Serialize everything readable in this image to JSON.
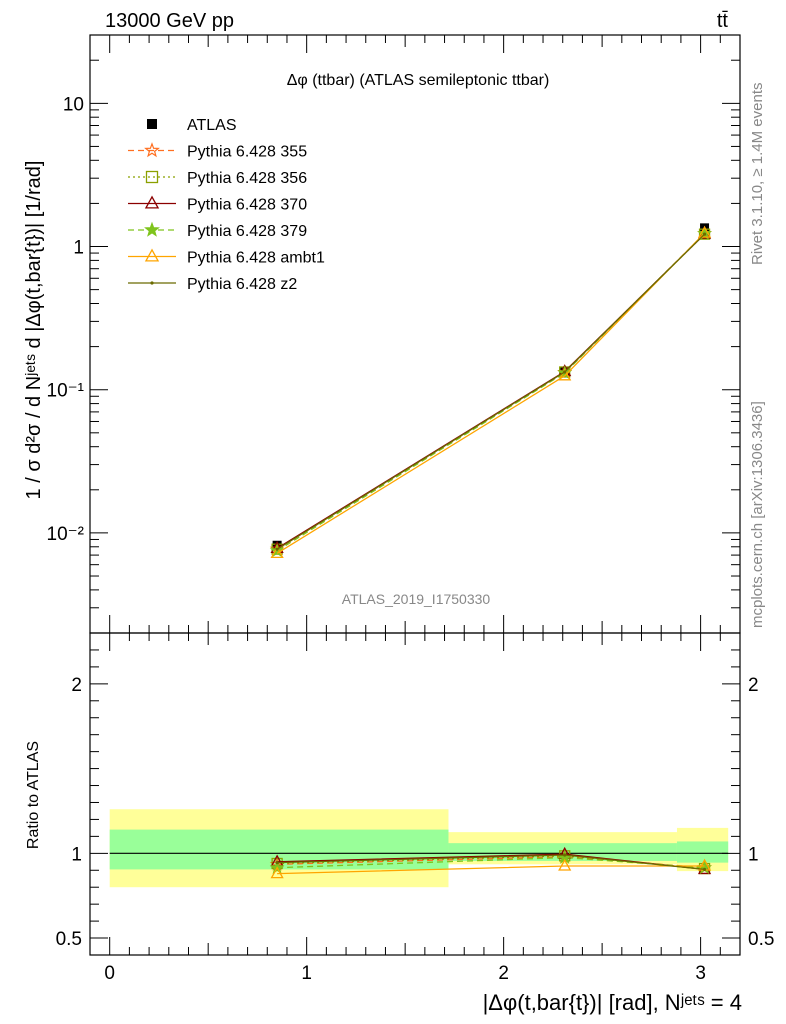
{
  "header": {
    "left": "13000 GeV pp",
    "right": "tt̄"
  },
  "side_labels": {
    "rivet": "Rivet 3.1.10, ≥ 1.4M events",
    "source": "mcplots.cern.ch [arXiv:1306.3436]"
  },
  "chart_data": [
    {
      "type": "line",
      "title": "Δφ (ttbar) (ATLAS semileptonic ttbar)",
      "watermark": "ATLAS_2019_I1750330",
      "ylabel": "1 / σ d²σ / d Nʲᵉᵗˢ d |Δφ(t,bar{t})| [1/rad]",
      "yscale": "log",
      "ylim": [
        0.002,
        30
      ],
      "xlim": [
        -0.1,
        3.2
      ],
      "y_tick_labels": [
        "10⁻²",
        "10⁻¹",
        "1",
        "10"
      ],
      "legend_position": "top-left",
      "x": [
        0.85,
        2.31,
        3.02
      ],
      "series": [
        {
          "name": "ATLAS",
          "color": "#000000",
          "marker": "square",
          "dash": "none",
          "values": [
            0.0082,
            0.135,
            1.35
          ]
        },
        {
          "name": "Pythia 6.428 355",
          "color": "#ff6f20",
          "marker": "star-open",
          "dash": "dashed",
          "values": [
            0.0077,
            0.132,
            1.23
          ]
        },
        {
          "name": "Pythia 6.428 356",
          "color": "#8ba000",
          "marker": "square-open",
          "dash": "dotted",
          "values": [
            0.0077,
            0.133,
            1.22
          ]
        },
        {
          "name": "Pythia 6.428 370",
          "color": "#8b0000",
          "marker": "triangle-open",
          "dash": "solid",
          "values": [
            0.0078,
            0.134,
            1.22
          ]
        },
        {
          "name": "Pythia 6.428 379",
          "color": "#7fc41c",
          "marker": "star",
          "dash": "dashed",
          "values": [
            0.0075,
            0.131,
            1.23
          ]
        },
        {
          "name": "Pythia 6.428 ambt1",
          "color": "#ffa500",
          "marker": "triangle-open",
          "dash": "solid",
          "values": [
            0.0072,
            0.125,
            1.24
          ]
        },
        {
          "name": "Pythia 6.428 z2",
          "color": "#6b6b00",
          "marker": "dot",
          "dash": "solid",
          "values": [
            0.0077,
            0.133,
            1.22
          ]
        }
      ]
    },
    {
      "type": "line",
      "ylabel": "Ratio to ATLAS",
      "xlabel": "|Δφ(t,bar{t})| [rad], Nʲᵉᵗˢ = 4",
      "ylim": [
        0.4,
        2.3
      ],
      "xlim": [
        -0.1,
        3.2
      ],
      "x_tick_labels": [
        "0",
        "1",
        "2",
        "3"
      ],
      "y_tick_labels": [
        "0.5",
        "1",
        "2"
      ],
      "bins": [
        [
          0.0,
          1.72
        ],
        [
          1.72,
          2.88
        ],
        [
          2.88,
          3.14
        ]
      ],
      "band_inner": [
        [
          0.905,
          1.14
        ],
        [
          0.955,
          1.06
        ],
        [
          0.945,
          1.07
        ]
      ],
      "band_outer": [
        [
          0.8,
          1.26
        ],
        [
          0.935,
          1.125
        ],
        [
          0.895,
          1.15
        ]
      ],
      "x": [
        0.85,
        2.31,
        3.02
      ],
      "series": [
        {
          "name": "Pythia 6.428 355",
          "values": [
            0.935,
            0.98,
            0.915
          ]
        },
        {
          "name": "Pythia 6.428 356",
          "values": [
            0.94,
            0.985,
            0.91
          ]
        },
        {
          "name": "Pythia 6.428 370",
          "values": [
            0.95,
            0.995,
            0.905
          ]
        },
        {
          "name": "Pythia 6.428 379",
          "values": [
            0.915,
            0.975,
            0.915
          ]
        },
        {
          "name": "Pythia 6.428 ambt1",
          "values": [
            0.88,
            0.925,
            0.925
          ]
        },
        {
          "name": "Pythia 6.428 z2",
          "values": [
            0.945,
            0.99,
            0.905
          ]
        }
      ]
    }
  ]
}
